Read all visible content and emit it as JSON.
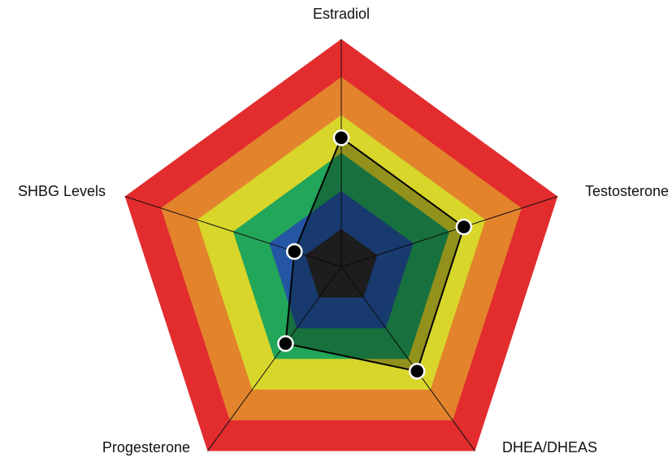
{
  "chart_data": {
    "type": "radar",
    "categories": [
      "Estradiol",
      "Testosterone",
      "DHEA/DHEAS",
      "Progesterone",
      "SHBG Levels"
    ],
    "values": [
      3.4,
      3.4,
      3.4,
      2.5,
      1.3
    ],
    "rlim": [
      0,
      6
    ],
    "rticks": [
      1,
      2,
      3,
      4,
      5,
      6
    ],
    "ring_colors": [
      "#2b2b2b",
      "#2456a4",
      "#22a65a",
      "#d8d62a",
      "#e3832c",
      "#e22c2e"
    ],
    "color": "#000000"
  }
}
